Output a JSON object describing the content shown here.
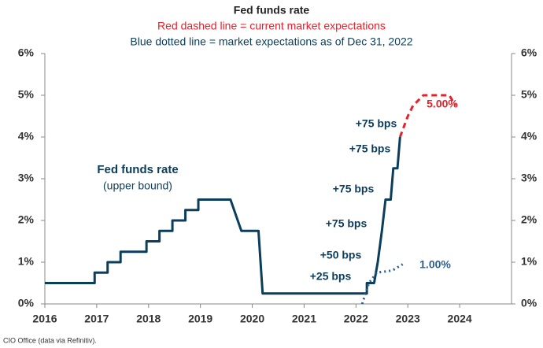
{
  "chart_data": {
    "type": "line",
    "title": "Fed funds rate",
    "subtitles": [
      "Red dashed line = current market expectations",
      "Blue dotted line = market expectations as of Dec 31, 2022"
    ],
    "xlim": [
      2016,
      2025
    ],
    "xticks": [
      2016,
      2017,
      2018,
      2019,
      2020,
      2021,
      2022,
      2023,
      2024
    ],
    "ylim": [
      0,
      6
    ],
    "yticks": [
      {
        "value": 0,
        "label": "0%"
      },
      {
        "value": 1,
        "label": "1%"
      },
      {
        "value": 2,
        "label": "2%"
      },
      {
        "value": 3,
        "label": "3%"
      },
      {
        "value": 4,
        "label": "4%"
      },
      {
        "value": 5,
        "label": "5%"
      },
      {
        "value": 6,
        "label": "6%"
      }
    ],
    "y2lim": [
      0,
      6
    ],
    "y2ticks": [
      {
        "value": 0,
        "label": "0%"
      },
      {
        "value": 1,
        "label": "1%"
      },
      {
        "value": 2,
        "label": "2%"
      },
      {
        "value": 3,
        "label": "3%"
      },
      {
        "value": 4,
        "label": "4%"
      },
      {
        "value": 5,
        "label": "5%"
      },
      {
        "value": 6,
        "label": "6%"
      }
    ],
    "grid": false,
    "series": [
      {
        "color": "#0b3d5c",
        "style": "solid",
        "x": [
          2016,
          2016.96,
          2016.96,
          2017.21,
          2017.21,
          2017.46,
          2017.46,
          2017.96,
          2017.96,
          2018.21,
          2018.21,
          2018.46,
          2018.46,
          2018.71,
          2018.71,
          2018.96,
          2018.96,
          2019.58,
          2019.79,
          2020.12,
          2020.2,
          2022.21,
          2022.21,
          2022.35,
          2022.42,
          2022.5,
          2022.57,
          2022.67,
          2022.72,
          2022.8,
          2022.85
        ],
        "values": [
          0.5,
          0.5,
          0.75,
          0.75,
          1,
          1,
          1.25,
          1.25,
          1.5,
          1.5,
          1.75,
          1.75,
          2,
          2,
          2.25,
          2.25,
          2.5,
          2.5,
          1.75,
          1.75,
          0.25,
          0.25,
          0.5,
          0.5,
          1,
          1.75,
          2.5,
          2.5,
          3.25,
          3.25,
          4
        ]
      },
      {
        "color": "#e8202a",
        "style": "dashed",
        "x": [
          2022.85,
          2023.0,
          2023.1,
          2023.3,
          2023.8,
          2023.92
        ],
        "values": [
          4,
          4.5,
          4.75,
          5,
          5,
          4.75
        ]
      },
      {
        "color": "#2a5f8a",
        "style": "dotted",
        "x": [
          2022.12,
          2022.25,
          2022.4,
          2022.7,
          2022.9
        ],
        "values": [
          0,
          0.5,
          0.75,
          0.8,
          0.95
        ]
      }
    ],
    "annotations": [
      "Fed funds rate",
      "(upper bound)",
      "+75 bps",
      "+75 bps",
      "+75 bps",
      "+75 bps",
      "+50 bps",
      "+25 bps",
      "5.00%",
      "1.00%"
    ],
    "source": "CIO Office (data via Refinitiv)."
  }
}
